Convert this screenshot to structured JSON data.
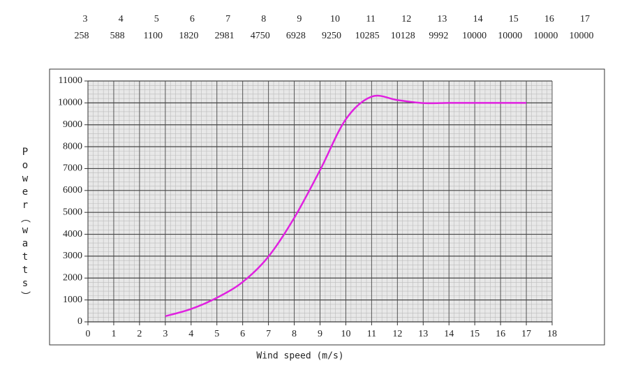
{
  "chart_data": {
    "type": "line",
    "xlabel": "Wind speed (m/s)",
    "ylabel": "Power（watts）",
    "x": [
      3,
      4,
      5,
      6,
      7,
      8,
      9,
      10,
      11,
      12,
      13,
      14,
      15,
      16,
      17
    ],
    "series": [
      {
        "color": "#e020e0",
        "values": [
          258,
          588,
          1100,
          1820,
          2981,
          4750,
          6928,
          9250,
          10285,
          10128,
          9992,
          10000,
          10000,
          10000,
          10000
        ]
      }
    ],
    "xlim": [
      0,
      18
    ],
    "xticks": [
      0,
      1,
      2,
      3,
      4,
      5,
      6,
      7,
      8,
      9,
      10,
      11,
      12,
      13,
      14,
      15,
      16,
      17,
      18
    ],
    "ylim": [
      0,
      11000
    ],
    "yticks": [
      0,
      1000,
      2000,
      3000,
      4000,
      5000,
      6000,
      7000,
      8000,
      9000,
      10000,
      11000
    ],
    "grid": true
  }
}
